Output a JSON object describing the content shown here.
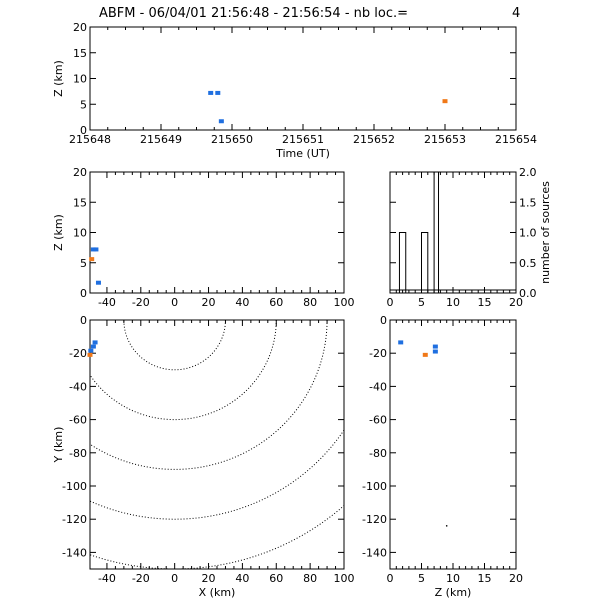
{
  "title": "ABFM - 06/04/01 21:56:48 - 21:56:54 - nb loc.=",
  "count": "4",
  "colors": {
    "blue": "#1f6fe0",
    "orange": "#f07818"
  },
  "chart_data": [
    {
      "id": "time_z",
      "type": "scatter",
      "xlabel": "Time (UT)",
      "ylabel": "Z (km)",
      "xlim": [
        215648,
        215654
      ],
      "ylim": [
        0,
        20
      ],
      "xticks": [
        215648,
        215649,
        215650,
        215651,
        215652,
        215653,
        215654
      ],
      "yticks": [
        0,
        5,
        10,
        15,
        20
      ],
      "points": [
        {
          "x": 215649.7,
          "y": 7.2,
          "color": "blue"
        },
        {
          "x": 215649.8,
          "y": 7.2,
          "color": "blue"
        },
        {
          "x": 215649.85,
          "y": 1.7,
          "color": "blue"
        },
        {
          "x": 215653.0,
          "y": 5.6,
          "color": "orange"
        }
      ]
    },
    {
      "id": "x_z",
      "type": "scatter",
      "xlabel": "",
      "ylabel": "Z (km)",
      "xlim": [
        -50,
        100
      ],
      "ylim": [
        0,
        20
      ],
      "xticks": [
        -40,
        -20,
        0,
        20,
        40,
        60,
        80,
        100
      ],
      "yticks": [
        0,
        5,
        10,
        15,
        20
      ],
      "points": [
        {
          "x": -48,
          "y": 7.2,
          "color": "blue"
        },
        {
          "x": -46.5,
          "y": 7.2,
          "color": "blue"
        },
        {
          "x": -45,
          "y": 1.7,
          "color": "blue"
        },
        {
          "x": -49,
          "y": 5.6,
          "color": "orange"
        }
      ]
    },
    {
      "id": "z_hist",
      "type": "bar",
      "xlabel": "",
      "ylabel": "number of sources",
      "xlim": [
        0,
        20
      ],
      "ylim": [
        0,
        2
      ],
      "xticks": [
        0,
        5,
        10,
        15,
        20
      ],
      "yticks": [
        0.0,
        0.5,
        1.0,
        1.5,
        2.0
      ],
      "ytick_labels": [
        "0.0",
        "0.5",
        "1.0",
        "1.5",
        "2.0"
      ],
      "bins": [
        {
          "x0": 1.5,
          "x1": 2.5,
          "value": 1
        },
        {
          "x0": 5.0,
          "x1": 6.0,
          "value": 1
        },
        {
          "x0": 7.0,
          "x1": 7.7,
          "value": 2
        }
      ]
    },
    {
      "id": "x_y",
      "type": "scatter",
      "xlabel": "X (km)",
      "ylabel": "Y (km)",
      "xlim": [
        -50,
        100
      ],
      "ylim": [
        -150,
        0
      ],
      "xticks": [
        -40,
        -20,
        0,
        20,
        40,
        60,
        80,
        100
      ],
      "yticks": [
        0,
        -20,
        -40,
        -60,
        -80,
        -100,
        -120,
        -140
      ],
      "contour_radii_km": [
        30,
        60,
        90,
        120,
        150
      ],
      "points": [
        {
          "x": -47,
          "y": -13.5,
          "color": "blue"
        },
        {
          "x": -48,
          "y": -16,
          "color": "blue"
        },
        {
          "x": -49.5,
          "y": -18.5,
          "color": "blue"
        },
        {
          "x": -50,
          "y": -21,
          "color": "orange"
        }
      ]
    },
    {
      "id": "z_y",
      "type": "scatter",
      "xlabel": "Z (km)",
      "ylabel": "",
      "xlim": [
        0,
        20
      ],
      "ylim": [
        -150,
        0
      ],
      "xticks": [
        0,
        5,
        10,
        15,
        20
      ],
      "yticks": [
        0,
        -20,
        -40,
        -60,
        -80,
        -100,
        -120,
        -140
      ],
      "points": [
        {
          "x": 1.7,
          "y": -13.5,
          "color": "blue"
        },
        {
          "x": 7.2,
          "y": -16,
          "color": "blue"
        },
        {
          "x": 7.2,
          "y": -19,
          "color": "blue"
        },
        {
          "x": 5.6,
          "y": -21,
          "color": "orange"
        },
        {
          "x": 9.0,
          "y": -124,
          "color": "black_dot"
        }
      ]
    }
  ]
}
